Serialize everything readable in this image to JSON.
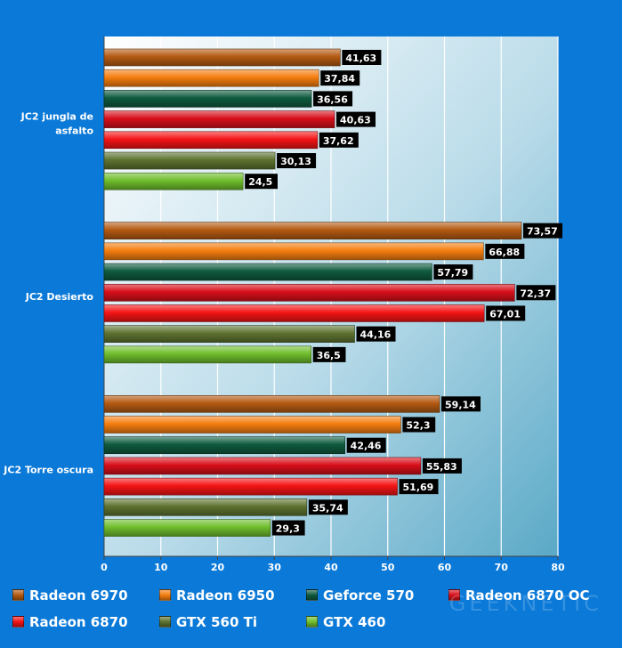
{
  "chart_data": {
    "type": "bar",
    "orientation": "horizontal",
    "categories": [
      "JC2 jungla de asfalto",
      "JC2 Desierto",
      "JC2 Torre oscura"
    ],
    "category_lines": [
      [
        "JC2 jungla de",
        "asfalto"
      ],
      [
        "JC2 Desierto"
      ],
      [
        "JC2 Torre oscura"
      ]
    ],
    "series": [
      {
        "name": "Radeon 6970",
        "color": "#b45a12",
        "values": [
          41.63,
          73.57,
          59.14
        ],
        "labels": [
          "41,63",
          "73,57",
          "59,14"
        ]
      },
      {
        "name": "Radeon 6950",
        "color": "#f57e10",
        "values": [
          37.84,
          66.88,
          52.3
        ],
        "labels": [
          "37,84",
          "66,88",
          "52,3"
        ]
      },
      {
        "name": "Geforce 570",
        "color": "#0f5b3f",
        "values": [
          36.56,
          57.79,
          42.46
        ],
        "labels": [
          "36,56",
          "57,79",
          "42,46"
        ]
      },
      {
        "name": "Radeon 6870 OC",
        "color": "#d80f1a",
        "values": [
          40.63,
          72.37,
          55.83
        ],
        "labels": [
          "40,63",
          "72,37",
          "55,83"
        ]
      },
      {
        "name": "Radeon 6870",
        "color": "#f41416",
        "values": [
          37.62,
          67.01,
          51.69
        ],
        "labels": [
          "37,62",
          "67,01",
          "51,69"
        ]
      },
      {
        "name": "GTX 560 Ti",
        "color": "#5e7330",
        "values": [
          30.13,
          44.16,
          35.74
        ],
        "labels": [
          "30,13",
          "44,16",
          "35,74"
        ]
      },
      {
        "name": "GTX 460",
        "color": "#6fbe2c",
        "values": [
          24.5,
          36.5,
          29.3
        ],
        "labels": [
          "24,5",
          "36,5",
          "29,3"
        ]
      }
    ],
    "xlim": [
      0,
      80
    ],
    "xticks": [
      0,
      10,
      20,
      30,
      40,
      50,
      60,
      70,
      80
    ],
    "grid": true,
    "legend_position": "bottom",
    "title": "",
    "xlabel": "",
    "ylabel": ""
  },
  "watermark": "GEEKNETIC"
}
